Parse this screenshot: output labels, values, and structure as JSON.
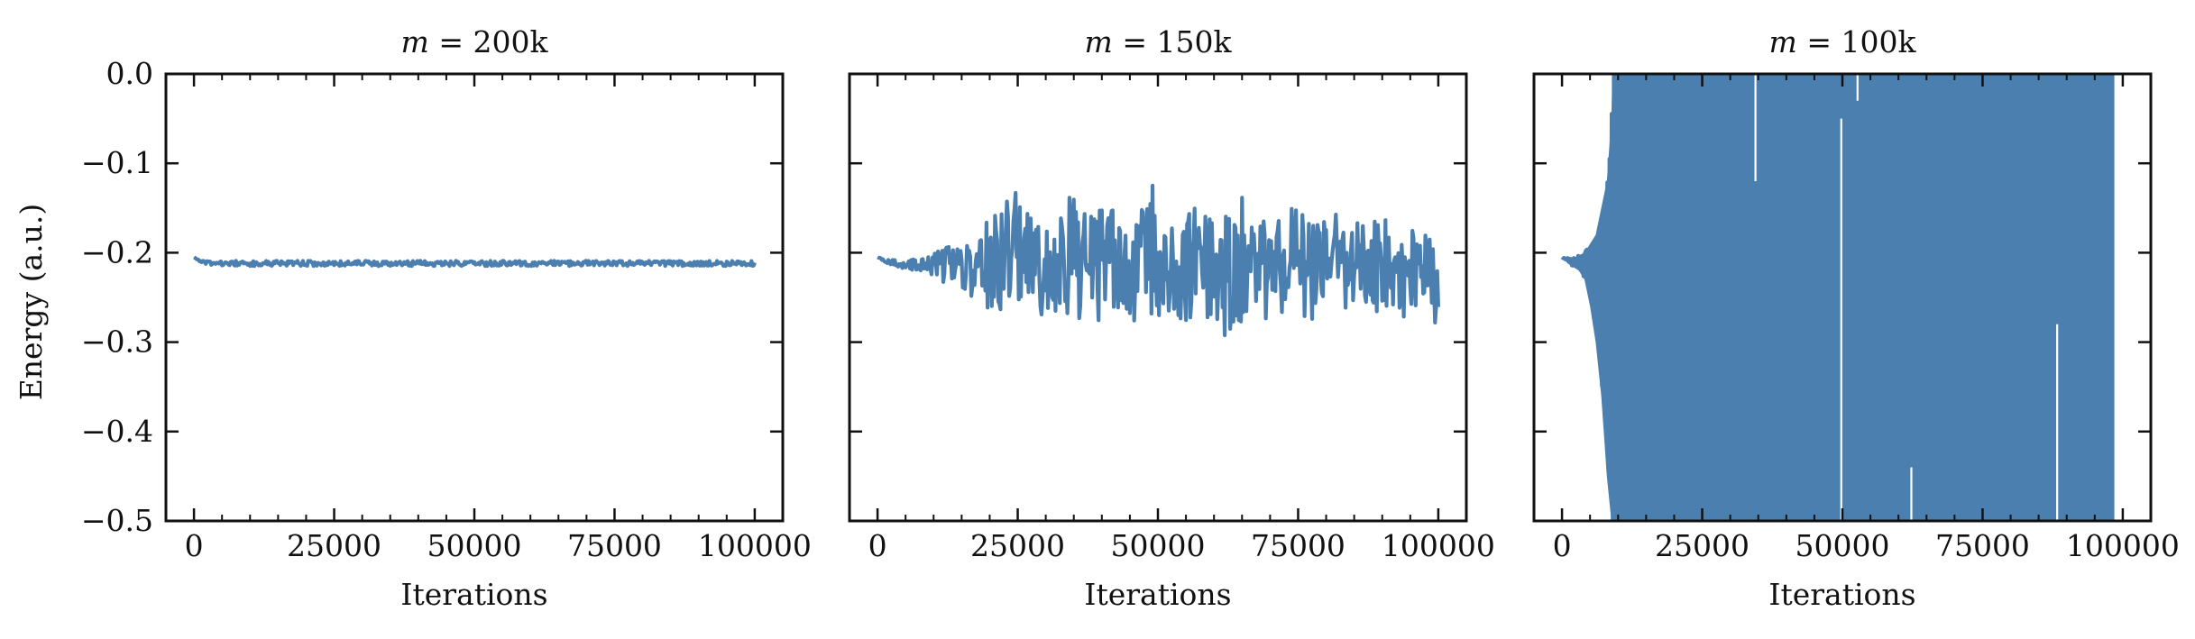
{
  "figure": {
    "line_color": "#4a7fb0",
    "background": "#ffffff",
    "ylabel": "Energy (a.u.)",
    "xlabel": "Iterations"
  },
  "chart_data": [
    {
      "type": "line",
      "title_var": "m",
      "title_rest": " = 200k",
      "xlabel": "Iterations",
      "ylabel": "Energy (a.u.)",
      "xlim": [
        -5000,
        105000
      ],
      "ylim": [
        -0.5,
        0.0
      ],
      "xticks": [
        0,
        25000,
        50000,
        75000,
        100000
      ],
      "xtick_labels": [
        "0",
        "25000",
        "50000",
        "75000",
        "100000"
      ],
      "yticks": [
        0.0,
        -0.1,
        -0.2,
        -0.3,
        -0.4,
        -0.5
      ],
      "ytick_labels": [
        "0.0",
        "−0.1",
        "−0.2",
        "−0.3",
        "−0.4",
        "−0.5"
      ],
      "show_yticklabels": true,
      "grid": false,
      "series": [
        {
          "x": [
            0,
            1000,
            2000,
            4000,
            6000,
            8000,
            10000,
            15000,
            20000,
            25000,
            30000,
            35000,
            40000,
            45000,
            50000,
            55000,
            60000,
            65000,
            70000,
            75000,
            80000,
            85000,
            90000,
            95000,
            100000
          ],
          "y": [
            -0.205,
            -0.209,
            -0.211,
            -0.212,
            -0.212,
            -0.211,
            -0.212,
            -0.212,
            -0.211,
            -0.212,
            -0.211,
            -0.212,
            -0.212,
            -0.211,
            -0.212,
            -0.212,
            -0.211,
            -0.212,
            -0.211,
            -0.212,
            -0.212,
            -0.211,
            -0.212,
            -0.212,
            -0.212
          ],
          "band_upper": [
            -0.205,
            -0.208,
            -0.209,
            -0.209,
            -0.209,
            -0.209,
            -0.209,
            -0.209,
            -0.209,
            -0.209,
            -0.209,
            -0.209,
            -0.209,
            -0.209,
            -0.209,
            -0.209,
            -0.209,
            -0.209,
            -0.209,
            -0.209,
            -0.209,
            -0.209,
            -0.209,
            -0.209,
            -0.209
          ],
          "band_lower": [
            -0.205,
            -0.211,
            -0.214,
            -0.215,
            -0.215,
            -0.215,
            -0.215,
            -0.215,
            -0.215,
            -0.215,
            -0.215,
            -0.215,
            -0.215,
            -0.215,
            -0.215,
            -0.215,
            -0.215,
            -0.215,
            -0.215,
            -0.215,
            -0.215,
            -0.215,
            -0.215,
            -0.215,
            -0.215
          ]
        }
      ]
    },
    {
      "type": "line",
      "title_var": "m",
      "title_rest": " = 150k",
      "xlabel": "Iterations",
      "ylabel": "",
      "xlim": [
        -5000,
        105000
      ],
      "ylim": [
        -0.5,
        0.0
      ],
      "xticks": [
        0,
        25000,
        50000,
        75000,
        100000
      ],
      "xtick_labels": [
        "0",
        "25000",
        "50000",
        "75000",
        "100000"
      ],
      "yticks": [
        0.0,
        -0.1,
        -0.2,
        -0.3,
        -0.4,
        -0.5
      ],
      "ytick_labels": [],
      "show_yticklabels": false,
      "grid": false,
      "series": [
        {
          "x": [
            0,
            2000,
            5000,
            8000,
            10000,
            13000,
            16000,
            18000,
            20000,
            22000,
            25000,
            26000,
            28000,
            30000,
            33000,
            35000,
            38000,
            40000,
            43000,
            45000,
            48000,
            49000,
            50000,
            53000,
            55000,
            57000,
            60000,
            62000,
            65000,
            67000,
            70000,
            73000,
            75000,
            78000,
            80000,
            83000,
            85000,
            88000,
            90000,
            93000,
            95000,
            98000,
            100000
          ],
          "y": [
            -0.205,
            -0.212,
            -0.213,
            -0.212,
            -0.214,
            -0.212,
            -0.215,
            -0.21,
            -0.215,
            -0.21,
            -0.216,
            -0.21,
            -0.215,
            -0.21,
            -0.215,
            -0.21,
            -0.215,
            -0.21,
            -0.215,
            -0.21,
            -0.214,
            -0.21,
            -0.215,
            -0.21,
            -0.216,
            -0.21,
            -0.215,
            -0.21,
            -0.214,
            -0.21,
            -0.215,
            -0.21,
            -0.215,
            -0.21,
            -0.216,
            -0.21,
            -0.215,
            -0.21,
            -0.214,
            -0.21,
            -0.215,
            -0.21,
            -0.24
          ],
          "band_upper": [
            -0.205,
            -0.208,
            -0.208,
            -0.205,
            -0.2,
            -0.19,
            -0.18,
            -0.17,
            -0.16,
            -0.15,
            -0.125,
            -0.15,
            -0.14,
            -0.16,
            -0.15,
            -0.13,
            -0.16,
            -0.14,
            -0.15,
            -0.155,
            -0.14,
            -0.105,
            -0.15,
            -0.16,
            -0.14,
            -0.15,
            -0.155,
            -0.15,
            -0.135,
            -0.17,
            -0.16,
            -0.155,
            -0.145,
            -0.165,
            -0.15,
            -0.16,
            -0.155,
            -0.165,
            -0.16,
            -0.17,
            -0.165,
            -0.17,
            -0.18
          ],
          "band_lower": [
            -0.205,
            -0.214,
            -0.218,
            -0.222,
            -0.228,
            -0.238,
            -0.25,
            -0.258,
            -0.275,
            -0.27,
            -0.26,
            -0.28,
            -0.265,
            -0.275,
            -0.27,
            -0.28,
            -0.27,
            -0.285,
            -0.275,
            -0.28,
            -0.29,
            -0.27,
            -0.28,
            -0.29,
            -0.3,
            -0.275,
            -0.28,
            -0.295,
            -0.28,
            -0.275,
            -0.285,
            -0.27,
            -0.28,
            -0.275,
            -0.27,
            -0.265,
            -0.28,
            -0.27,
            -0.265,
            -0.27,
            -0.275,
            -0.27,
            -0.285
          ]
        }
      ]
    },
    {
      "type": "line",
      "title_var": "m",
      "title_rest": " = 100k",
      "xlabel": "Iterations",
      "ylabel": "",
      "xlim": [
        -5000,
        105000
      ],
      "ylim": [
        -0.5,
        0.0
      ],
      "xticks": [
        0,
        25000,
        50000,
        75000,
        100000
      ],
      "xtick_labels": [
        "0",
        "25000",
        "50000",
        "75000",
        "100000"
      ],
      "yticks": [
        0.0,
        -0.1,
        -0.2,
        -0.3,
        -0.4,
        -0.5
      ],
      "ytick_labels": [],
      "show_yticklabels": false,
      "grid": false,
      "series": [
        {
          "x": [
            0,
            1000,
            2000,
            3000,
            4000,
            5000,
            6000,
            7000,
            8000,
            8800,
            9000,
            100000
          ],
          "y": [
            -0.205,
            -0.208,
            -0.21,
            -0.21,
            -0.205,
            -0.2,
            -0.19,
            -0.17,
            -0.15,
            -0.1,
            0.0,
            0.0
          ],
          "band_upper": [
            -0.205,
            -0.205,
            -0.206,
            -0.203,
            -0.2,
            -0.19,
            -0.18,
            -0.15,
            -0.12,
            -0.05,
            0.0,
            0.0
          ],
          "band_lower": [
            -0.205,
            -0.212,
            -0.216,
            -0.22,
            -0.23,
            -0.26,
            -0.3,
            -0.36,
            -0.45,
            -0.5,
            -0.5,
            -0.5
          ]
        }
      ]
    }
  ]
}
